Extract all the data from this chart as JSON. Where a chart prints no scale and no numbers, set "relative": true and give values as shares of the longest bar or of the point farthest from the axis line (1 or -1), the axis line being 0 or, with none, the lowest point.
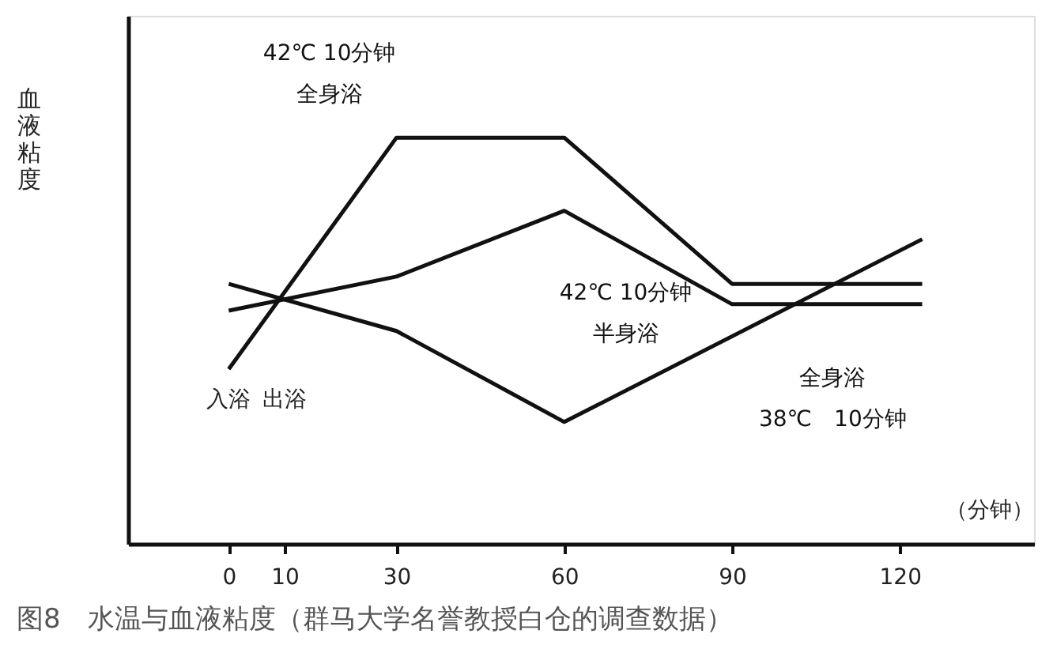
{
  "chart_data": {
    "type": "line",
    "relative": true,
    "title": "图8　水温与血液粘度（群马大学名誉教授白仓的调查数据）",
    "ylabel": "血液粘度",
    "xlabel": "（分钟）",
    "xlim": [
      -18,
      144
    ],
    "xticks": [
      0,
      10,
      30,
      60,
      90,
      120
    ],
    "series": [
      {
        "name": "42℃ 10分钟全身浴",
        "color": "#111111",
        "x": [
          0,
          30,
          60,
          90,
          124
        ],
        "values": [
          0.43,
          1.0,
          1.0,
          0.64,
          0.64
        ]
      },
      {
        "name": "42℃ 10分钟半身浴",
        "color": "#111111",
        "x": [
          0,
          30,
          60,
          90,
          124
        ],
        "values": [
          0.574,
          0.658,
          0.82,
          0.59,
          0.59
        ]
      },
      {
        "name": "全身浴38℃　10分钟",
        "color": "#111111",
        "x": [
          0,
          30,
          60,
          124
        ],
        "values": [
          0.64,
          0.524,
          0.3,
          0.75
        ]
      }
    ],
    "annotations": [
      "入浴",
      "出浴"
    ],
    "grid": false,
    "marker": "none",
    "line_style": "solid"
  }
}
